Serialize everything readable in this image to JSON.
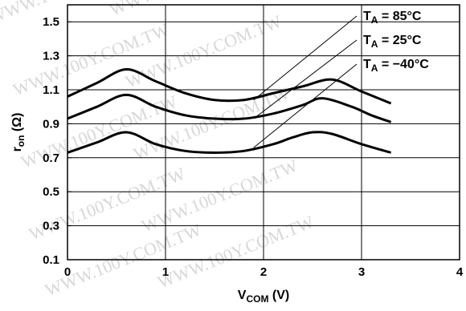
{
  "chart_data": {
    "type": "line",
    "xlabel": {
      "main": "V",
      "sub": "COM",
      "tail": " (V)"
    },
    "ylabel": {
      "main": "r",
      "sub": "on",
      "tail": " (Ω)"
    },
    "xlim": [
      0,
      4
    ],
    "ylim": [
      0.1,
      1.6
    ],
    "x_ticks": [
      0,
      1,
      2,
      3,
      4
    ],
    "x_tick_labels": [
      "0",
      "1",
      "2",
      "3",
      "4"
    ],
    "y_ticks": [
      0.1,
      0.3,
      0.5,
      0.7,
      0.9,
      1.1,
      1.3,
      1.5
    ],
    "y_tick_labels": [
      "0.1",
      "0.3",
      "0.5",
      "0.7",
      "0.9",
      "1.1",
      "1.3",
      "1.5"
    ],
    "grid": true,
    "legend_placement": "top-right, labels connected to curves by leader lines",
    "series": [
      {
        "name": "T_A = 85°C",
        "label": {
          "main": "T",
          "sub": "A",
          "tail": " = 85°C"
        },
        "x": [
          0,
          0.3,
          0.6,
          0.9,
          1.2,
          1.5,
          1.8,
          2.1,
          2.4,
          2.7,
          3.0,
          3.3
        ],
        "y": [
          1.06,
          1.14,
          1.22,
          1.15,
          1.08,
          1.04,
          1.04,
          1.08,
          1.12,
          1.16,
          1.09,
          1.02
        ]
      },
      {
        "name": "T_A = 25°C",
        "label": {
          "main": "T",
          "sub": "A",
          "tail": " = 25°C"
        },
        "x": [
          0,
          0.3,
          0.6,
          0.9,
          1.2,
          1.5,
          1.8,
          2.1,
          2.4,
          2.6,
          2.9,
          3.1,
          3.3
        ],
        "y": [
          0.93,
          1.0,
          1.07,
          1.0,
          0.95,
          0.93,
          0.93,
          0.96,
          1.01,
          1.05,
          1.0,
          0.95,
          0.91
        ]
      },
      {
        "name": "T_A = −40°C",
        "label": {
          "main": "T",
          "sub": "A",
          "tail": " = −40°C"
        },
        "x": [
          0,
          0.3,
          0.6,
          0.9,
          1.2,
          1.5,
          1.8,
          2.1,
          2.3,
          2.5,
          2.7,
          3.0,
          3.3
        ],
        "y": [
          0.73,
          0.79,
          0.85,
          0.78,
          0.74,
          0.73,
          0.74,
          0.78,
          0.82,
          0.85,
          0.84,
          0.78,
          0.73
        ]
      }
    ],
    "leaders": [
      {
        "series": 0,
        "from": [
          1.9,
          1.04
        ]
      },
      {
        "series": 1,
        "from": [
          1.9,
          0.93
        ]
      },
      {
        "series": 2,
        "from": [
          1.9,
          0.76
        ]
      }
    ],
    "watermark_text": "WWW.100Y.COM.TW"
  }
}
